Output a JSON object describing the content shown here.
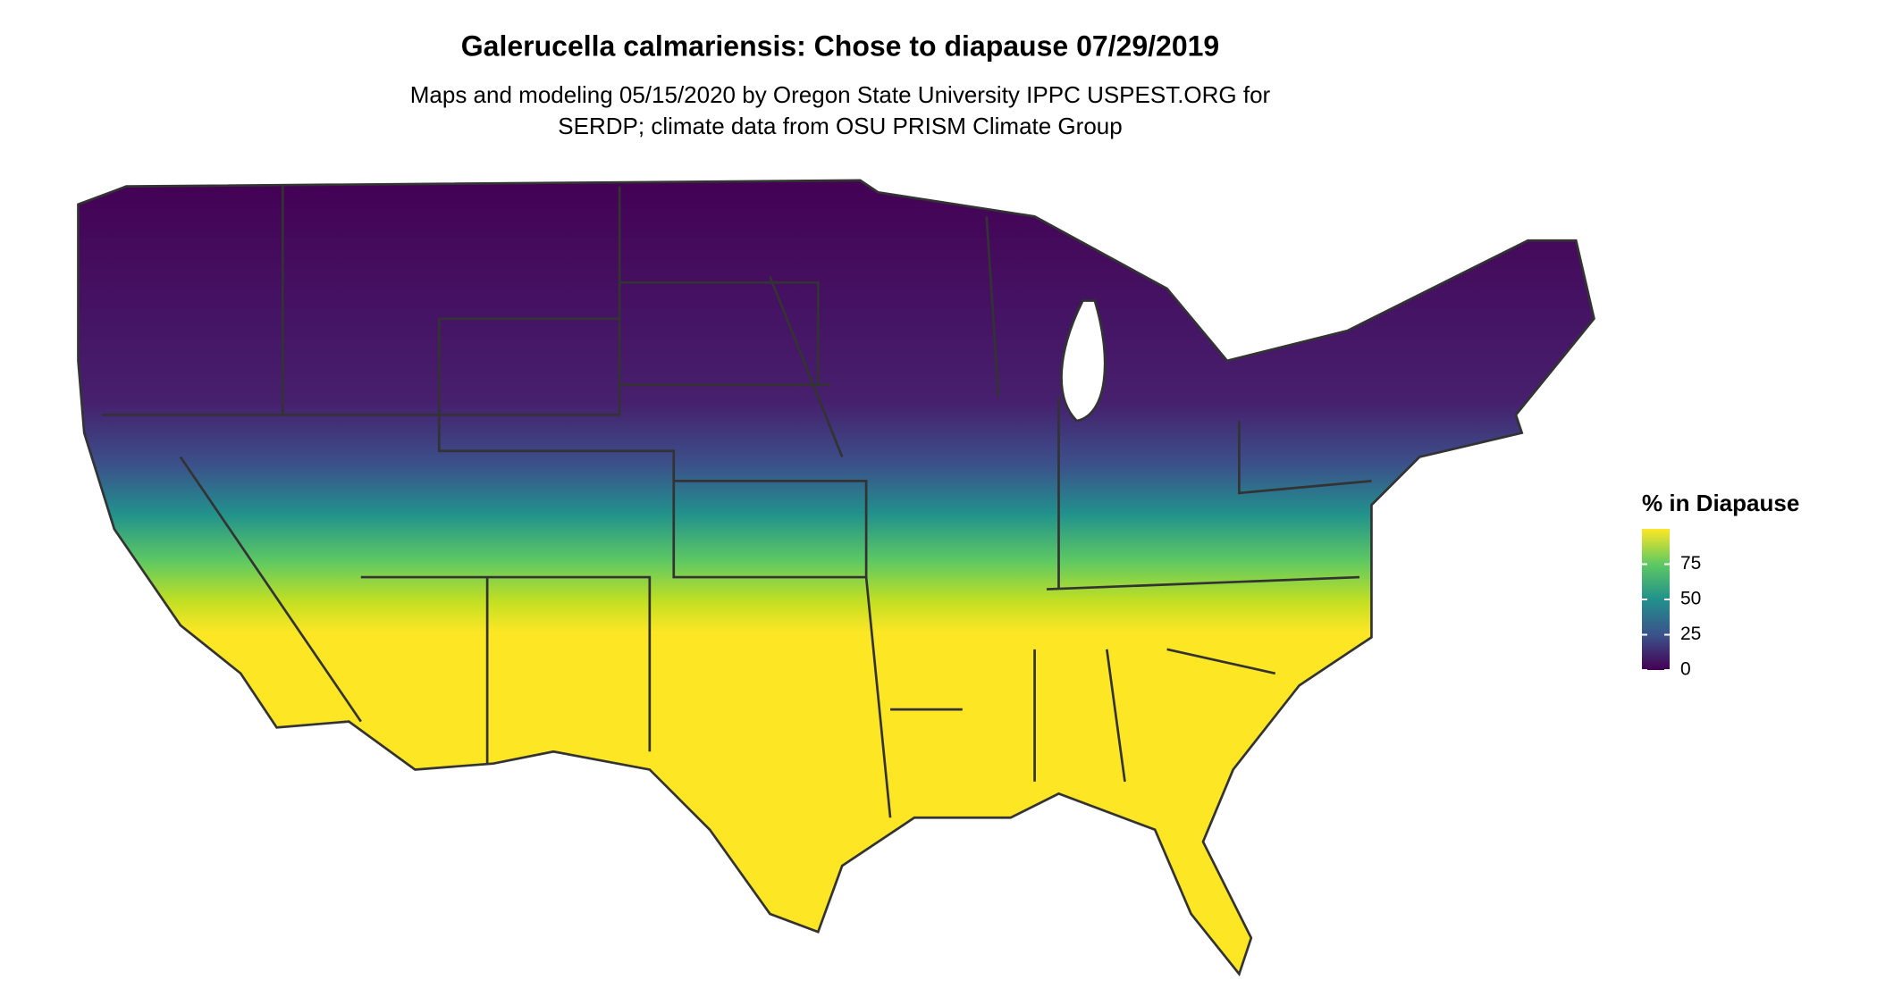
{
  "header": {
    "title": "Galerucella calmariensis: Chose to diapause 07/29/2019",
    "subtitle": [
      "Maps and modeling 05/15/2020 by Oregon State University IPPC USPEST.ORG for",
      "SERDP; climate data from OSU PRISM Climate Group"
    ]
  },
  "legend": {
    "title": "% in Diapause",
    "lim": [
      0,
      100
    ],
    "ticks": [
      0,
      25,
      50,
      75
    ],
    "colors": [
      "#440154",
      "#3b528b",
      "#21918c",
      "#5ec962",
      "#fde725"
    ]
  }
}
